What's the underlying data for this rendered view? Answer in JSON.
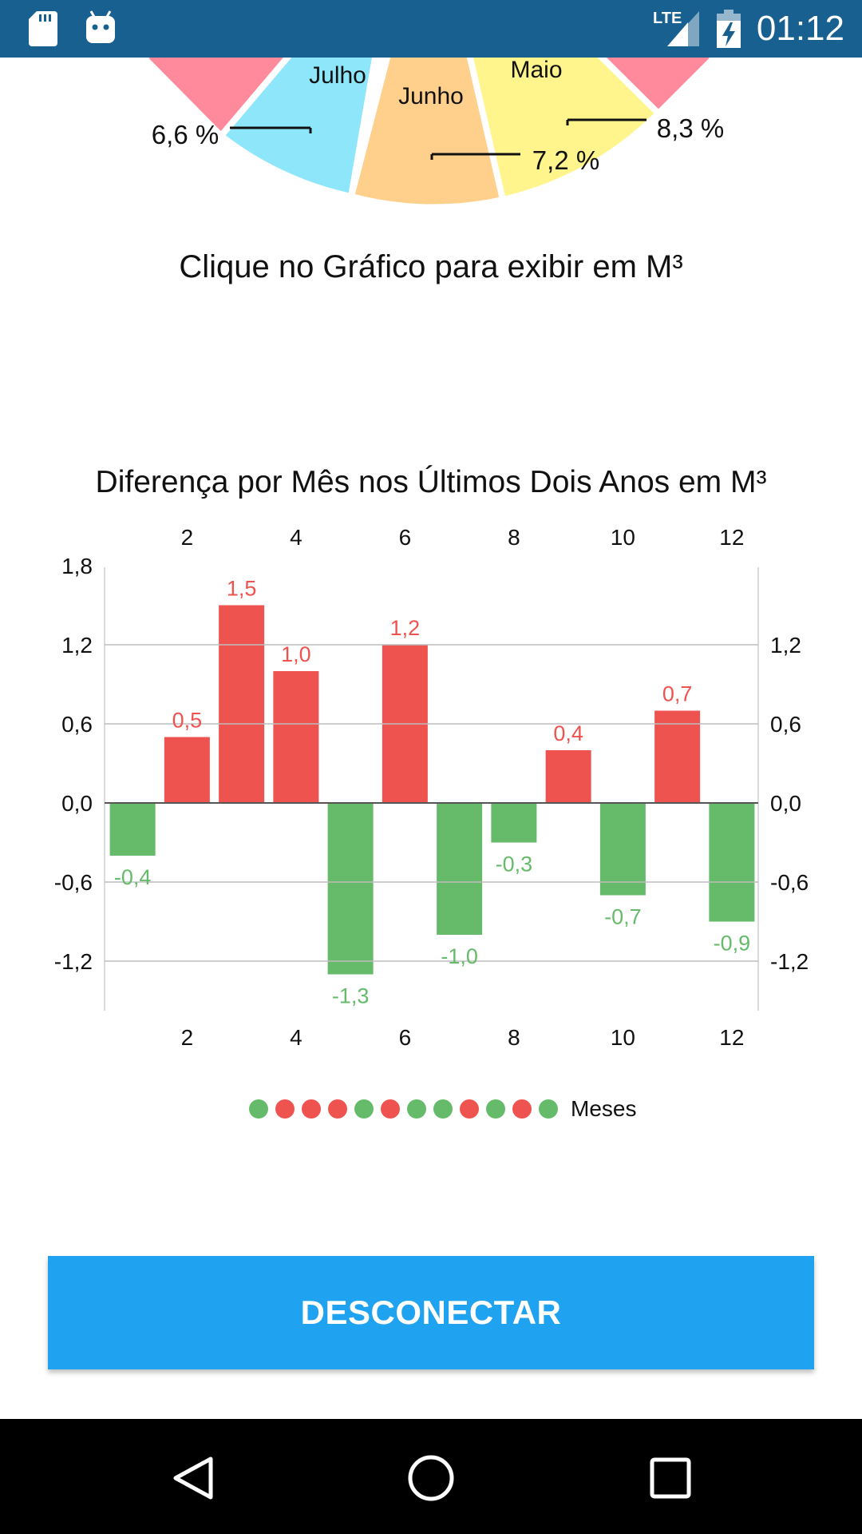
{
  "status_bar": {
    "time": "01:12",
    "network": "LTE",
    "icons": [
      "sd-card-icon",
      "android-icon",
      "signal-icon",
      "battery-charging-icon"
    ]
  },
  "pie": {
    "slices": [
      {
        "label": "",
        "percent": "",
        "color": "#ff8a9b"
      },
      {
        "label": "Julho",
        "percent": "6,6 %",
        "color": "#8ee6fb"
      },
      {
        "label": "Junho",
        "percent": "7,2 %",
        "color": "#ffd08c"
      },
      {
        "label": "Maio",
        "percent": "8,3 %",
        "color": "#fff58c"
      },
      {
        "label": "",
        "percent": "",
        "color": "#ff8a9b"
      }
    ]
  },
  "caption": "Clique no Gráfico para exibir em M³",
  "chart_data": {
    "type": "bar",
    "title": "Diferença por Mês nos Últimos Dois Anos em M³",
    "categories": [
      1,
      2,
      3,
      4,
      5,
      6,
      7,
      8,
      9,
      10,
      11,
      12
    ],
    "values": [
      -0.4,
      0.5,
      1.5,
      1.0,
      -1.3,
      1.2,
      -1.0,
      -0.3,
      0.4,
      -0.7,
      0.7,
      -0.9
    ],
    "value_labels": [
      "-0,4",
      "0,5",
      "1,5",
      "1,0",
      "-1,3",
      "1,2",
      "-1,0",
      "-0,3",
      "0,4",
      "-0,7",
      "0,7",
      "-0,9"
    ],
    "x_tick_labels": [
      "2",
      "4",
      "6",
      "8",
      "10",
      "12"
    ],
    "y_left_ticks": [
      "1,8",
      "1,2",
      "0,6",
      "0,0",
      "-0,6",
      "-1,2"
    ],
    "y_right_ticks": [
      "1,2",
      "0,6",
      "0,0",
      "-0,6",
      "-1,2"
    ],
    "ylim": [
      -1.6,
      1.8
    ],
    "positive_color": "#ef5350",
    "negative_color": "#66bb6a",
    "legend_label": "Meses",
    "grid": true,
    "legend_position": "bottom"
  },
  "buttons": {
    "disconnect": "DESCONECTAR"
  },
  "nav_bar": {
    "icons": [
      "back-icon",
      "home-icon",
      "recents-icon"
    ]
  }
}
